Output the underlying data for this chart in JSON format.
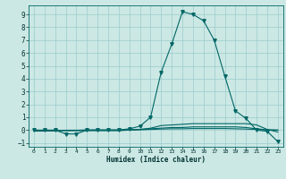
{
  "xlabel": "Humidex (Indice chaleur)",
  "bg_color": "#cce8e4",
  "grid_color": "#99cccc",
  "line_color": "#006666",
  "xlim": [
    -0.5,
    23.5
  ],
  "ylim": [
    -1.3,
    9.7
  ],
  "x_ticks": [
    0,
    1,
    2,
    3,
    4,
    5,
    6,
    7,
    8,
    9,
    10,
    11,
    12,
    13,
    14,
    15,
    16,
    17,
    18,
    19,
    20,
    21,
    22,
    23
  ],
  "y_ticks": [
    -1,
    0,
    1,
    2,
    3,
    4,
    5,
    6,
    7,
    8,
    9
  ],
  "series": [
    {
      "x": [
        0,
        1,
        2,
        3,
        4,
        5,
        6,
        7,
        8,
        9,
        10,
        11,
        12,
        13,
        14,
        15,
        16,
        17,
        18,
        19,
        20,
        21,
        22,
        23
      ],
      "y": [
        0,
        0,
        0,
        -0.3,
        -0.3,
        0,
        0,
        0,
        0,
        0.1,
        0.3,
        1.0,
        4.5,
        6.7,
        9.2,
        9.0,
        8.5,
        7.0,
        4.2,
        1.5,
        0.9,
        0.0,
        -0.1,
        -0.9
      ],
      "marker": "v",
      "markersize": 2.5,
      "linewidth": 0.8,
      "zorder": 3
    },
    {
      "x": [
        0,
        1,
        2,
        3,
        4,
        5,
        6,
        7,
        8,
        9,
        10,
        11,
        12,
        13,
        14,
        15,
        16,
        17,
        18,
        19,
        20,
        21,
        22,
        23
      ],
      "y": [
        -0.05,
        -0.05,
        -0.05,
        -0.05,
        -0.05,
        -0.05,
        -0.05,
        -0.05,
        -0.05,
        0.0,
        0.05,
        0.15,
        0.35,
        0.4,
        0.45,
        0.5,
        0.5,
        0.5,
        0.5,
        0.5,
        0.5,
        0.4,
        0.05,
        -0.15
      ],
      "marker": null,
      "markersize": 0,
      "linewidth": 0.8,
      "zorder": 2
    },
    {
      "x": [
        0,
        1,
        2,
        3,
        4,
        5,
        6,
        7,
        8,
        9,
        10,
        11,
        12,
        13,
        14,
        15,
        16,
        17,
        18,
        19,
        20,
        21,
        22,
        23
      ],
      "y": [
        -0.08,
        -0.08,
        -0.05,
        -0.02,
        -0.02,
        0,
        0,
        0,
        0,
        0.02,
        0.05,
        0.1,
        0.15,
        0.2,
        0.2,
        0.25,
        0.25,
        0.25,
        0.25,
        0.25,
        0.2,
        0.1,
        0.02,
        0.0
      ],
      "marker": null,
      "markersize": 0,
      "linewidth": 0.8,
      "zorder": 2
    },
    {
      "x": [
        0,
        1,
        2,
        3,
        4,
        5,
        6,
        7,
        8,
        9,
        10,
        11,
        12,
        13,
        14,
        15,
        16,
        17,
        18,
        19,
        20,
        21,
        22,
        23
      ],
      "y": [
        -0.05,
        -0.05,
        -0.03,
        -0.01,
        -0.01,
        0,
        0,
        0,
        0,
        0.01,
        0.02,
        0.05,
        0.08,
        0.1,
        0.1,
        0.12,
        0.12,
        0.12,
        0.12,
        0.1,
        0.08,
        0.05,
        0.01,
        0.0
      ],
      "marker": null,
      "markersize": 0,
      "linewidth": 0.8,
      "zorder": 2
    }
  ]
}
